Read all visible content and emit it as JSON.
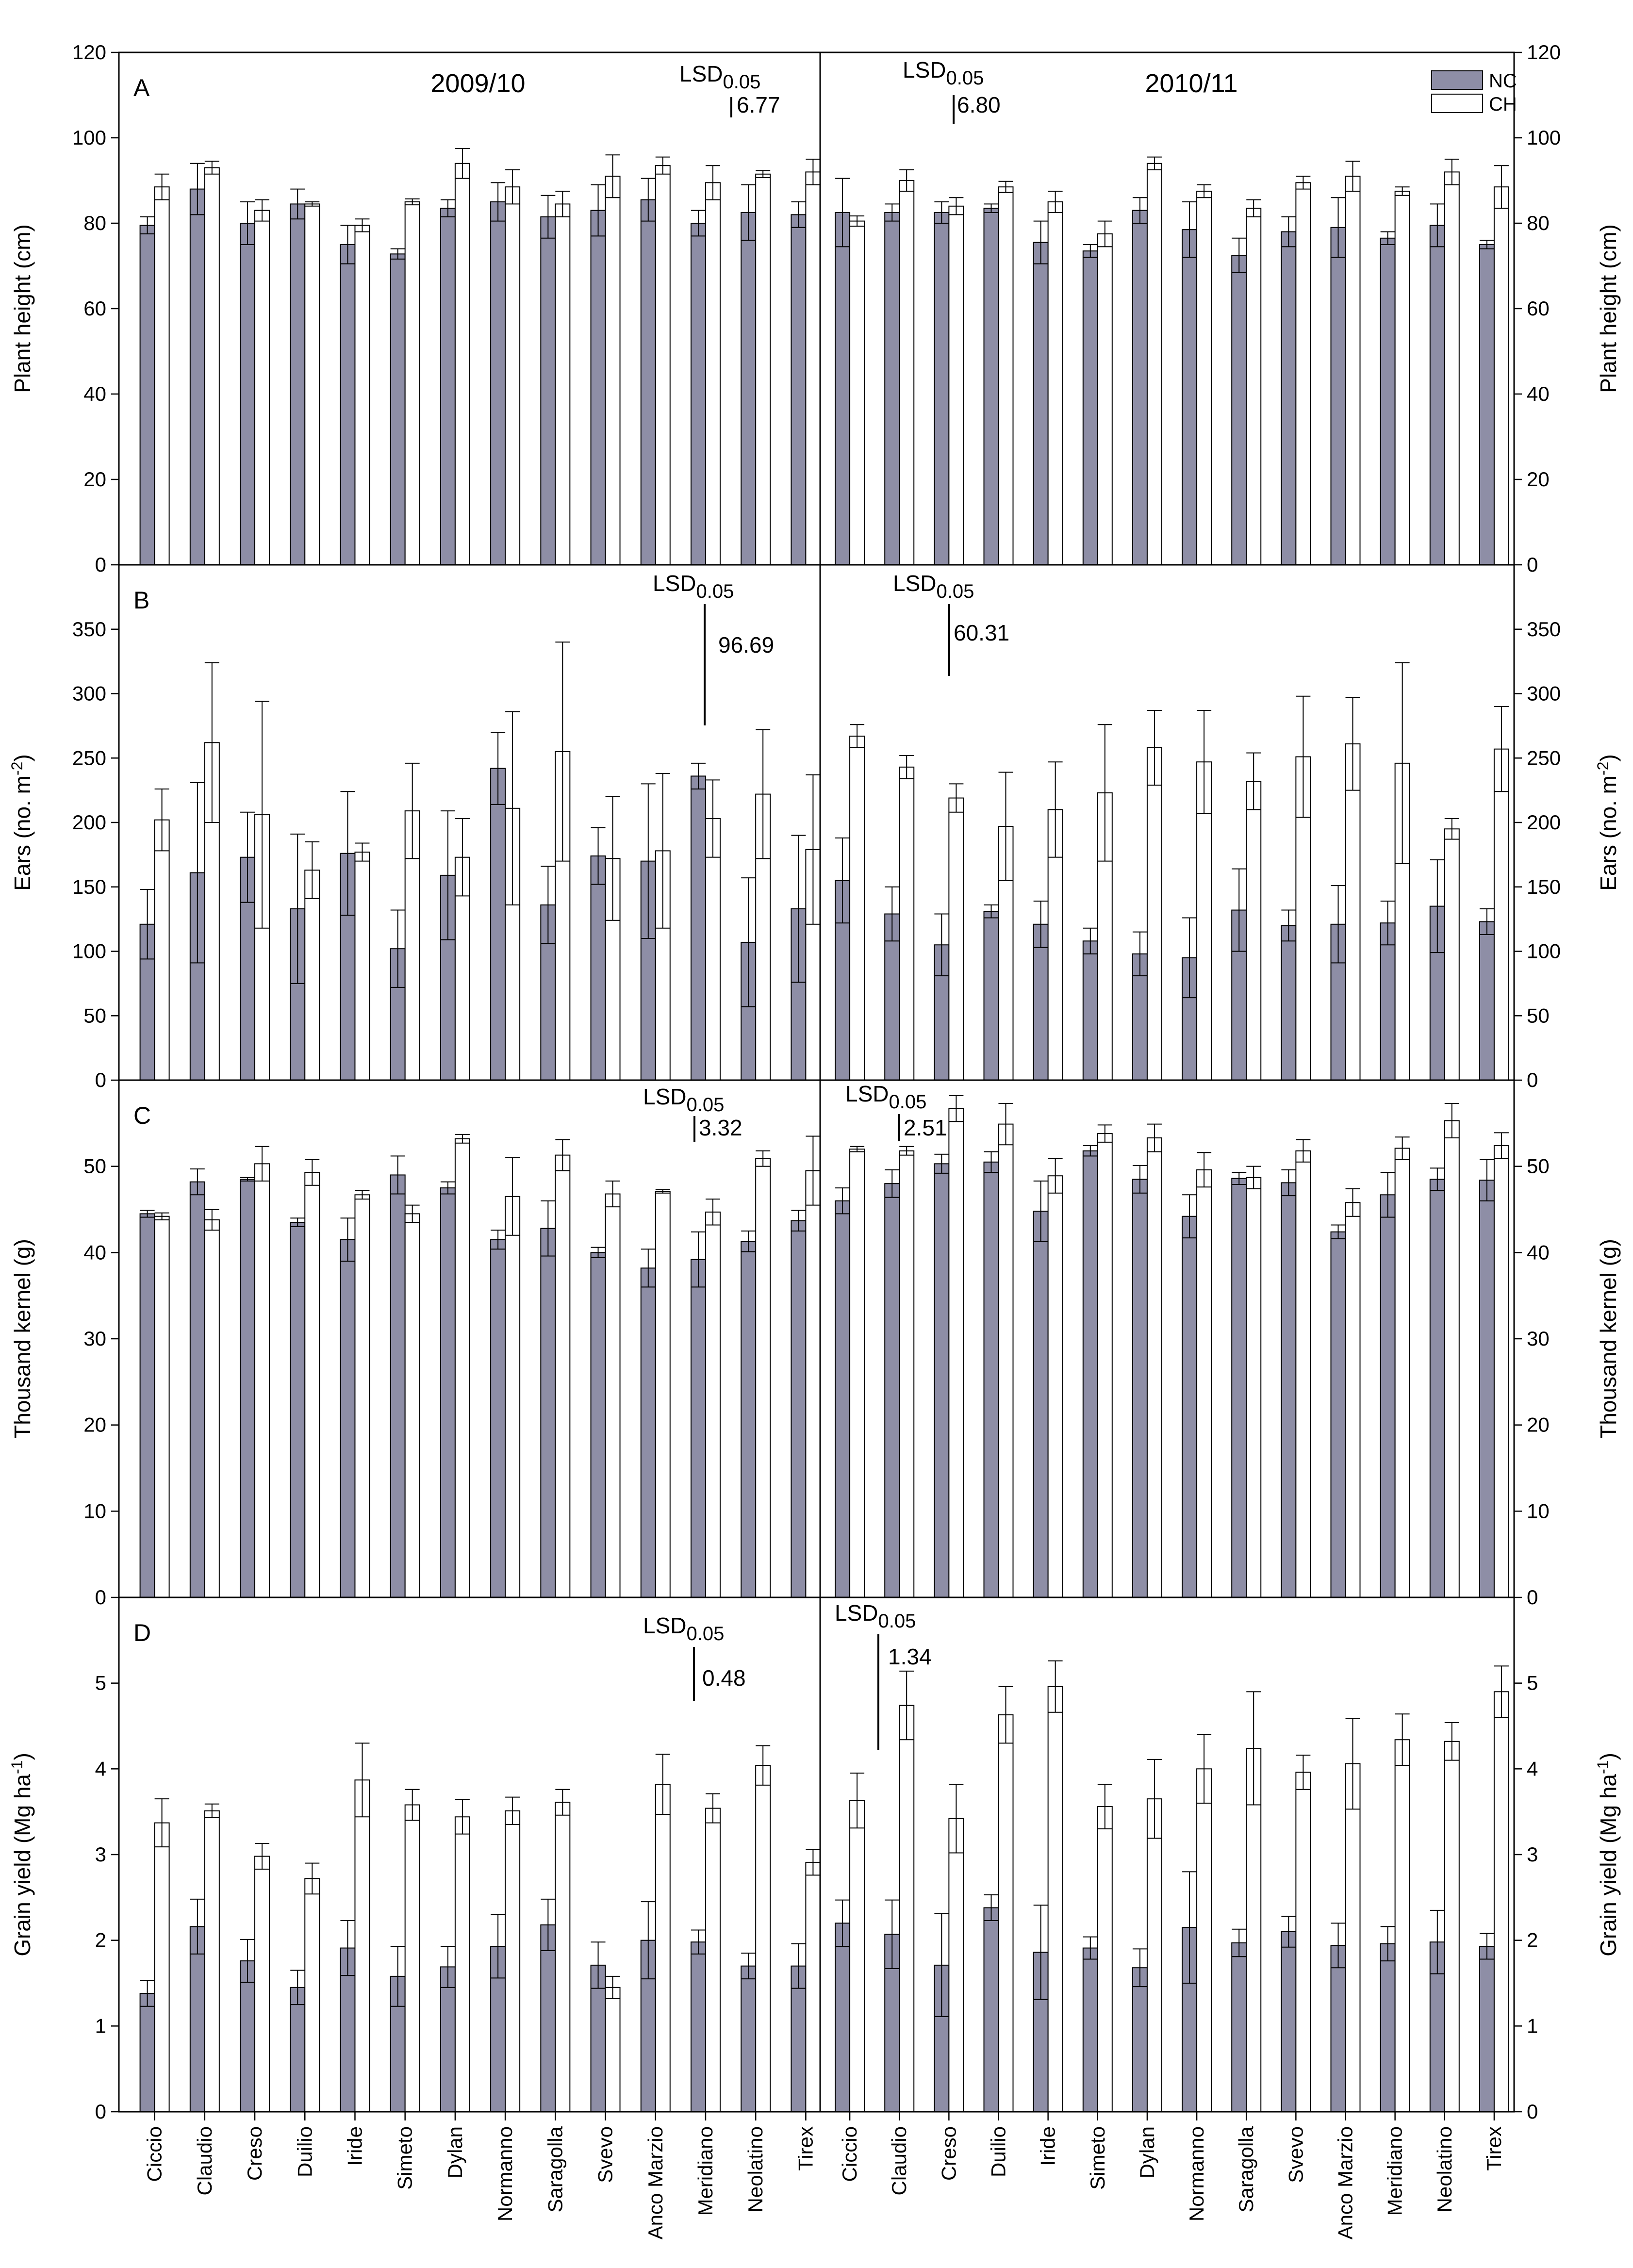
{
  "chart_data": {
    "type": "bar",
    "seasons": [
      "2009/10",
      "2010/11"
    ],
    "categories": [
      "Ciccio",
      "Claudio",
      "Creso",
      "Duilio",
      "Iride",
      "Simeto",
      "Dylan",
      "Normanno",
      "Saragolla",
      "Svevo",
      "Anco Marzio",
      "Meridiano",
      "Neolatino",
      "Tirex"
    ],
    "legend": [
      {
        "key": "NC",
        "label": "NC",
        "color": "#8e8ea6"
      },
      {
        "key": "CH",
        "label": "CH",
        "color": "#ffffff"
      }
    ],
    "panels": [
      {
        "letter": "A",
        "ylabel": "Plant height (cm)",
        "ylim": [
          0,
          120
        ],
        "yticks": [
          0,
          20,
          40,
          60,
          80,
          100,
          120
        ],
        "lsd": [
          {
            "title": "LSD",
            "sub": "0.05",
            "value_label": "6.77",
            "value": 6.77
          },
          {
            "title": "LSD",
            "sub": "0.05",
            "value_label": "6.80",
            "value": 6.8
          }
        ],
        "series": [
          {
            "name": "NC",
            "s2009": [
              79.5,
              88,
              80,
              84.5,
              75,
              72.8,
              83.5,
              85,
              81.5,
              83,
              85.5,
              80,
              82.5,
              82
            ],
            "err2009": [
              2,
              6,
              5,
              3.5,
              4.5,
              1.2,
              2,
              4.5,
              5,
              6,
              5,
              3,
              6.5,
              3
            ],
            "s2010": [
              82.5,
              82.5,
              82.5,
              83.5,
              75.5,
              73.5,
              83,
              78.5,
              72.5,
              78,
              79,
              76.5,
              79.5,
              75
            ],
            "err2010": [
              8,
              2,
              2.5,
              1,
              5,
              1.5,
              3,
              6.5,
              4,
              3.5,
              7,
              1.5,
              5,
              1
            ]
          },
          {
            "name": "CH",
            "s2009": [
              88.5,
              93,
              83,
              84.5,
              79.5,
              85,
              94,
              88.5,
              84.5,
              91,
              93.5,
              89.5,
              91.5,
              92
            ],
            "err2009": [
              3,
              1.5,
              2.5,
              0.5,
              1.5,
              0.7,
              3.5,
              4,
              3,
              5,
              2,
              4,
              0.8,
              3
            ],
            "s2010": [
              80.5,
              90,
              84,
              88.5,
              85,
              77.5,
              94,
              87.5,
              83.5,
              89.5,
              91,
              87.5,
              92,
              88.5
            ],
            "err2010": [
              1.2,
              2.5,
              2,
              1.3,
              2.5,
              3,
              1.5,
              1.5,
              2,
              1.5,
              3.5,
              1,
              3,
              5
            ]
          }
        ]
      },
      {
        "letter": "B",
        "ylabel": "Ears (no. m",
        "ylabel_sup": "-2",
        "ylabel_end": ")",
        "ylim": [
          0,
          400
        ],
        "yticks": [
          0,
          50,
          100,
          150,
          200,
          250,
          300,
          350
        ],
        "lsd": [
          {
            "title": "LSD",
            "sub": "0.05",
            "value_label": "96.69",
            "value": 96.69
          },
          {
            "title": "LSD",
            "sub": "0.05",
            "value_label": "60.31",
            "value": 60.31
          }
        ],
        "series": [
          {
            "name": "NC",
            "s2009": [
              121,
              161,
              173,
              133,
              176,
              102,
              159,
              242,
              136,
              174,
              170,
              236,
              107,
              133
            ],
            "err2009": [
              27,
              70,
              35,
              58,
              48,
              30,
              50,
              28,
              30,
              22,
              60,
              10,
              50,
              57
            ],
            "s2010": [
              155,
              129,
              105,
              131,
              121,
              108,
              98,
              95,
              132,
              120,
              121,
              122,
              135,
              123
            ],
            "err2010": [
              33,
              21,
              24,
              5,
              18,
              10,
              17,
              31,
              32,
              12,
              30,
              17,
              36,
              10
            ]
          },
          {
            "name": "CH",
            "s2009": [
              202,
              262,
              206,
              163,
              177,
              209,
              173,
              211,
              255,
              172,
              178,
              203,
              222,
              179
            ],
            "err2009": [
              24,
              62,
              88,
              22,
              7,
              37,
              30,
              75,
              85,
              48,
              60,
              30,
              50,
              58
            ],
            "s2010": [
              267,
              243,
              219,
              197,
              210,
              223,
              258,
              247,
              232,
              251,
              261,
              246,
              195,
              257
            ],
            "err2010": [
              9,
              9,
              11,
              42,
              37,
              53,
              29,
              40,
              22,
              47,
              36,
              78,
              8,
              33
            ]
          }
        ]
      },
      {
        "letter": "C",
        "ylabel": "Thousand kernel (g)",
        "ylim": [
          0,
          60
        ],
        "yticks": [
          0,
          10,
          20,
          30,
          40,
          50
        ],
        "lsd": [
          {
            "title": "LSD",
            "sub": "0.05",
            "value_label": "3.32",
            "value": 3.32
          },
          {
            "title": "LSD",
            "sub": "0.05",
            "value_label": "2.51",
            "value": 2.51
          }
        ],
        "series": [
          {
            "name": "NC",
            "s2009": [
              44.5,
              48.2,
              48.5,
              43.5,
              41.5,
              49,
              47.5,
              41.5,
              42.8,
              40,
              38.2,
              39.2,
              41.3,
              43.7
            ],
            "err2009": [
              0.4,
              1.5,
              0.2,
              0.5,
              2.5,
              2.2,
              0.7,
              1.1,
              3.2,
              0.6,
              2.2,
              3.2,
              1.2,
              1.2
            ],
            "s2010": [
              46,
              48,
              50.3,
              50.5,
              44.8,
              51.8,
              48.5,
              44.2,
              48.6,
              48.1,
              42.4,
              46.7,
              48.5,
              48.4
            ],
            "err2010": [
              1.5,
              1.6,
              1.1,
              1.2,
              3.5,
              0.6,
              1.6,
              2.5,
              0.7,
              1.5,
              0.8,
              2.6,
              1.3,
              2.4
            ]
          },
          {
            "name": "CH",
            "s2009": [
              44.2,
              43.8,
              50.3,
              49.3,
              46.7,
              44.5,
              53.2,
              46.5,
              51.3,
              46.8,
              47.1,
              44.7,
              50.9,
              49.5
            ],
            "err2009": [
              0.4,
              1.2,
              2,
              1.5,
              0.5,
              1,
              0.5,
              4.5,
              1.8,
              1.5,
              0.2,
              1.5,
              0.9,
              4
            ],
            "s2010": [
              52,
              51.8,
              56.7,
              54.9,
              48.9,
              53.8,
              53.3,
              49.6,
              48.7,
              51.8,
              45.8,
              52.1,
              55.3,
              52.4
            ],
            "err2010": [
              0.3,
              0.5,
              1.5,
              2.4,
              2,
              1,
              1.6,
              2,
              1.3,
              1.3,
              1.6,
              1.3,
              2,
              1.5
            ]
          }
        ]
      },
      {
        "letter": "D",
        "ylabel": "Grain yield (Mg ha",
        "ylabel_sup": "-1",
        "ylabel_end": ")",
        "ylim": [
          0,
          6
        ],
        "yticks": [
          0,
          1,
          2,
          3,
          4,
          5
        ],
        "lsd": [
          {
            "title": "LSD",
            "sub": "0.05",
            "value_label": "0.48",
            "value": 0.48
          },
          {
            "title": "LSD",
            "sub": "0.05",
            "value_label": "1.34",
            "value": 1.34
          }
        ],
        "series": [
          {
            "name": "NC",
            "s2009": [
              1.38,
              2.16,
              1.76,
              1.45,
              1.91,
              1.58,
              1.69,
              1.93,
              2.18,
              1.71,
              2.0,
              1.98,
              1.7,
              1.7
            ],
            "err2009": [
              0.15,
              0.32,
              0.25,
              0.2,
              0.32,
              0.35,
              0.24,
              0.37,
              0.3,
              0.27,
              0.45,
              0.14,
              0.15,
              0.26
            ],
            "s2010": [
              2.2,
              2.07,
              1.71,
              2.38,
              1.86,
              1.91,
              1.68,
              2.15,
              1.97,
              2.1,
              1.94,
              1.96,
              1.98,
              1.93
            ],
            "err2010": [
              0.27,
              0.4,
              0.6,
              0.15,
              0.55,
              0.13,
              0.22,
              0.65,
              0.16,
              0.18,
              0.26,
              0.2,
              0.37,
              0.15
            ]
          },
          {
            "name": "CH",
            "s2009": [
              3.37,
              3.51,
              2.98,
              2.72,
              3.87,
              3.58,
              3.44,
              3.51,
              3.61,
              1.45,
              3.82,
              3.54,
              4.04,
              2.91
            ],
            "err2009": [
              0.28,
              0.08,
              0.15,
              0.18,
              0.43,
              0.18,
              0.2,
              0.16,
              0.15,
              0.13,
              0.35,
              0.17,
              0.23,
              0.15
            ],
            "s2010": [
              3.63,
              4.74,
              3.42,
              4.63,
              4.96,
              3.56,
              3.65,
              4.0,
              4.24,
              3.96,
              4.06,
              4.34,
              4.32,
              4.9
            ],
            "err2010": [
              0.32,
              0.4,
              0.4,
              0.33,
              0.3,
              0.26,
              0.46,
              0.4,
              0.66,
              0.2,
              0.53,
              0.3,
              0.22,
              0.3
            ]
          }
        ]
      }
    ]
  }
}
